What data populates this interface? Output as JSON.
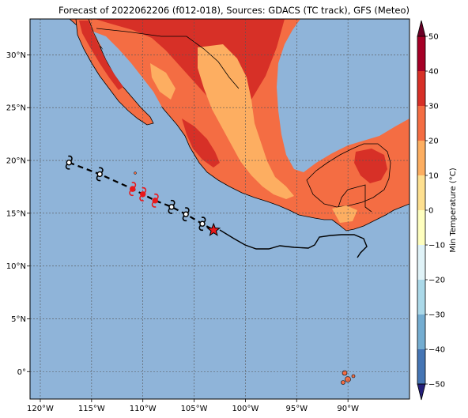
{
  "title": "Forecast of 2022062206 (f012-018), Sources: GDACS (TC track), GFS (Meteo)",
  "colorbar": {
    "label": "Min Temperature (°C)",
    "ticks": [
      "50",
      "40",
      "30",
      "20",
      "10",
      "0",
      "−10",
      "−20",
      "−30",
      "−40",
      "−50"
    ],
    "colors": [
      "#6b0026",
      "#a50026",
      "#d73027",
      "#f46d43",
      "#fdae61",
      "#fee090",
      "#ffffbf",
      "#e0f3f8",
      "#abd9e9",
      "#74add1",
      "#4575b4",
      "#313695",
      "#241f7a"
    ]
  },
  "map": {
    "ocean_color": "#8fb4d9",
    "lat_labels": [
      "30°N",
      "25°N",
      "20°N",
      "15°N",
      "10°N",
      "5°N",
      "0°"
    ],
    "lon_labels": [
      "120°W",
      "115°W",
      "110°W",
      "105°W",
      "100°W",
      "95°W",
      "90°W"
    ]
  },
  "track": {
    "forecast_points": [
      {
        "lon": -117.2,
        "lat": 19.8,
        "color": "white"
      },
      {
        "lon": -114.2,
        "lat": 18.7,
        "color": "white"
      },
      {
        "lon": -111.0,
        "lat": 17.3,
        "color": "red"
      },
      {
        "lon": -110.0,
        "lat": 16.8,
        "color": "red"
      },
      {
        "lon": -108.8,
        "lat": 16.2,
        "color": "red"
      },
      {
        "lon": -107.2,
        "lat": 15.6,
        "color": "white"
      },
      {
        "lon": -105.8,
        "lat": 14.9,
        "color": "white"
      },
      {
        "lon": -104.2,
        "lat": 14.0,
        "color": "white"
      }
    ],
    "current_position": {
      "lon": -103.1,
      "lat": 13.4
    }
  }
}
